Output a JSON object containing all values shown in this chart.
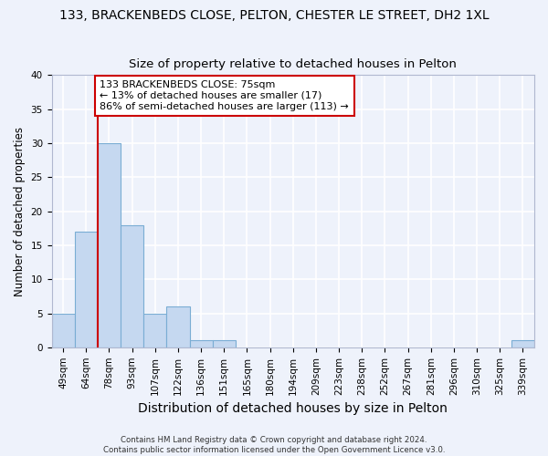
{
  "title": "133, BRACKENBEDS CLOSE, PELTON, CHESTER LE STREET, DH2 1XL",
  "subtitle": "Size of property relative to detached houses in Pelton",
  "xlabel": "Distribution of detached houses by size in Pelton",
  "ylabel": "Number of detached properties",
  "bar_labels": [
    "49sqm",
    "64sqm",
    "78sqm",
    "93sqm",
    "107sqm",
    "122sqm",
    "136sqm",
    "151sqm",
    "165sqm",
    "180sqm",
    "194sqm",
    "209sqm",
    "223sqm",
    "238sqm",
    "252sqm",
    "267sqm",
    "281sqm",
    "296sqm",
    "310sqm",
    "325sqm",
    "339sqm"
  ],
  "bar_values": [
    5,
    17,
    30,
    18,
    5,
    6,
    1,
    1,
    0,
    0,
    0,
    0,
    0,
    0,
    0,
    0,
    0,
    0,
    0,
    0,
    1
  ],
  "bar_color": "#c5d8f0",
  "bar_edge_color": "#7aadd4",
  "ylim": [
    0,
    40
  ],
  "yticks": [
    0,
    5,
    10,
    15,
    20,
    25,
    30,
    35,
    40
  ],
  "red_line_x": 1.5,
  "annotation_text": "133 BRACKENBEDS CLOSE: 75sqm\n← 13% of detached houses are smaller (17)\n86% of semi-detached houses are larger (113) →",
  "annotation_box_color": "#ffffff",
  "annotation_border_color": "#cc0000",
  "footer_text": "Contains HM Land Registry data © Crown copyright and database right 2024.\nContains public sector information licensed under the Open Government Licence v3.0.",
  "background_color": "#eef2fb",
  "grid_color": "#ffffff",
  "title_fontsize": 10,
  "subtitle_fontsize": 9.5,
  "ylabel_fontsize": 8.5,
  "xlabel_fontsize": 10,
  "tick_fontsize": 7.5,
  "annotation_fontsize": 8
}
